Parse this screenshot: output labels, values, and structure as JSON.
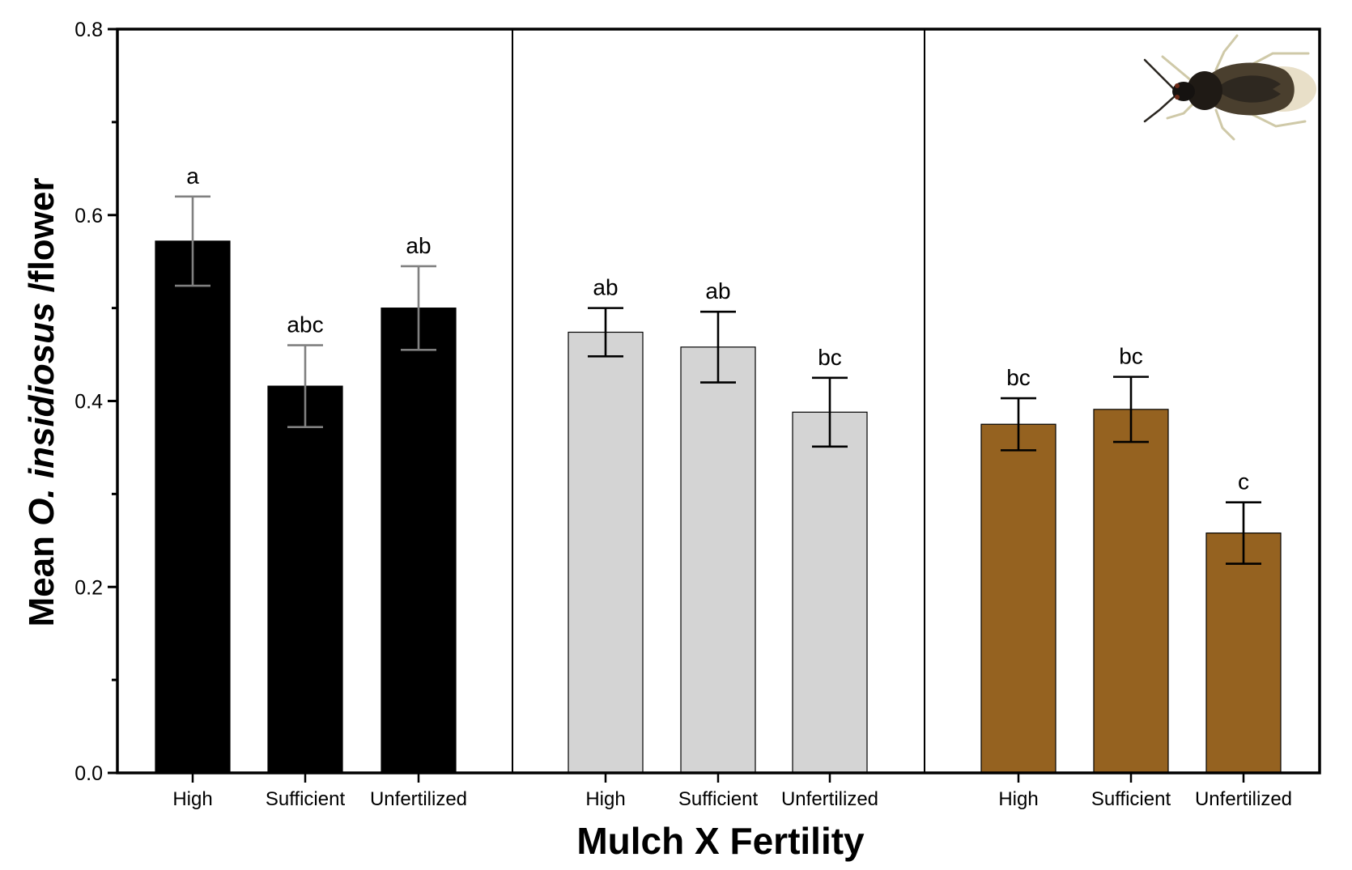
{
  "chart_data": {
    "type": "bar",
    "xlabel": "Mulch X Fertility",
    "ylabel_prefix": "Mean ",
    "ylabel_italic": "O. insidiosus",
    "ylabel_suffix": " /flower",
    "ylim": [
      0,
      0.8
    ],
    "yticks": [
      0.0,
      0.2,
      0.4,
      0.6,
      0.8
    ],
    "ytick_labels": [
      "0.0",
      "0.2",
      "0.4",
      "0.6",
      "0.8"
    ],
    "grid": false,
    "legend": null,
    "insect_icon": "insect-photo",
    "groups": [
      {
        "color": "#000000",
        "error_color": "#808080",
        "categories": [
          "High",
          "Sufficient",
          "Unfertilized"
        ],
        "values": [
          0.572,
          0.416,
          0.5
        ],
        "errors": [
          0.048,
          0.044,
          0.045
        ],
        "letters": [
          "a",
          "abc",
          "ab"
        ]
      },
      {
        "color": "#d4d4d4",
        "error_color": "#000000",
        "categories": [
          "High",
          "Sufficient",
          "Unfertilized"
        ],
        "values": [
          0.474,
          0.458,
          0.388
        ],
        "errors": [
          0.026,
          0.038,
          0.037
        ],
        "letters": [
          "ab",
          "ab",
          "bc"
        ]
      },
      {
        "color": "#956220",
        "error_color": "#000000",
        "categories": [
          "High",
          "Sufficient",
          "Unfertilized"
        ],
        "values": [
          0.375,
          0.391,
          0.258
        ],
        "errors": [
          0.028,
          0.035,
          0.033
        ],
        "letters": [
          "bc",
          "bc",
          "c"
        ]
      }
    ]
  }
}
